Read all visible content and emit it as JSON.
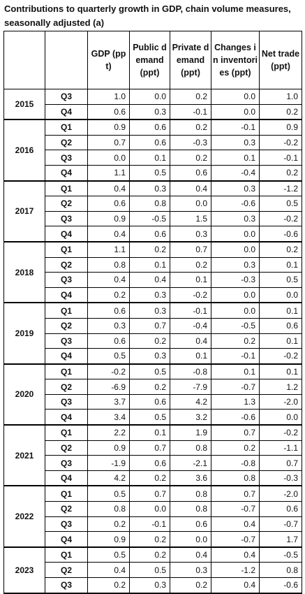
{
  "header": {
    "title": "Contributions to quarterly growth in GDP, chain volume measures, seasonally adjusted (a)"
  },
  "table": {
    "columns": [
      "GDP (ppt)",
      "Public demand (ppt)",
      "Private demand (ppt)",
      "Changes in inventories (ppt)",
      "Net trade (ppt)"
    ],
    "groups": [
      {
        "year": "2015",
        "rows": [
          {
            "quarter": "Q3",
            "values": [
              "1.0",
              "0.0",
              "0.2",
              "0.0",
              "1.0"
            ]
          },
          {
            "quarter": "Q4",
            "values": [
              "0.6",
              "0.3",
              "-0.1",
              "0.0",
              "0.2"
            ]
          }
        ]
      },
      {
        "year": "2016",
        "rows": [
          {
            "quarter": "Q1",
            "values": [
              "0.9",
              "0.6",
              "0.2",
              "-0.1",
              "0.9"
            ]
          },
          {
            "quarter": "Q2",
            "values": [
              "0.7",
              "0.6",
              "-0.3",
              "0.3",
              "-0.2"
            ]
          },
          {
            "quarter": "Q3",
            "values": [
              "0.0",
              "0.1",
              "0.2",
              "0.1",
              "-0.1"
            ]
          },
          {
            "quarter": "Q4",
            "values": [
              "1.1",
              "0.5",
              "0.6",
              "-0.4",
              "0.2"
            ]
          }
        ]
      },
      {
        "year": "2017",
        "rows": [
          {
            "quarter": "Q1",
            "values": [
              "0.4",
              "0.3",
              "0.4",
              "0.3",
              "-1.2"
            ]
          },
          {
            "quarter": "Q2",
            "values": [
              "0.6",
              "0.8",
              "0.0",
              "-0.6",
              "0.5"
            ]
          },
          {
            "quarter": "Q3",
            "values": [
              "0.9",
              "-0.5",
              "1.5",
              "0.3",
              "-0.2"
            ]
          },
          {
            "quarter": "Q4",
            "values": [
              "0.4",
              "0.6",
              "0.3",
              "0.0",
              "-0.6"
            ]
          }
        ]
      },
      {
        "year": "2018",
        "rows": [
          {
            "quarter": "Q1",
            "values": [
              "1.1",
              "0.2",
              "0.7",
              "0.0",
              "0.2"
            ]
          },
          {
            "quarter": "Q2",
            "values": [
              "0.8",
              "0.1",
              "0.2",
              "0.3",
              "0.1"
            ]
          },
          {
            "quarter": "Q3",
            "values": [
              "0.4",
              "0.4",
              "0.1",
              "-0.3",
              "0.5"
            ]
          },
          {
            "quarter": "Q4",
            "values": [
              "0.2",
              "0.3",
              "-0.2",
              "0.0",
              "0.0"
            ]
          }
        ]
      },
      {
        "year": "2019",
        "rows": [
          {
            "quarter": "Q1",
            "values": [
              "0.6",
              "0.3",
              "-0.1",
              "0.0",
              "0.1"
            ]
          },
          {
            "quarter": "Q2",
            "values": [
              "0.3",
              "0.7",
              "-0.4",
              "-0.5",
              "0.6"
            ]
          },
          {
            "quarter": "Q3",
            "values": [
              "0.6",
              "0.2",
              "0.4",
              "0.2",
              "0.1"
            ]
          },
          {
            "quarter": "Q4",
            "values": [
              "0.5",
              "0.3",
              "0.1",
              "-0.1",
              "-0.2"
            ]
          }
        ]
      },
      {
        "year": "2020",
        "rows": [
          {
            "quarter": "Q1",
            "values": [
              "-0.2",
              "0.5",
              "-0.8",
              "0.1",
              "0.1"
            ]
          },
          {
            "quarter": "Q2",
            "values": [
              "-6.9",
              "0.2",
              "-7.9",
              "-0.7",
              "1.2"
            ]
          },
          {
            "quarter": "Q3",
            "values": [
              "3.7",
              "0.6",
              "4.2",
              "1.3",
              "-2.0"
            ]
          },
          {
            "quarter": "Q4",
            "values": [
              "3.4",
              "0.5",
              "3.2",
              "-0.6",
              "0.0"
            ]
          }
        ]
      },
      {
        "year": "2021",
        "rows": [
          {
            "quarter": "Q1",
            "values": [
              "2.2",
              "0.1",
              "1.9",
              "0.7",
              "-0.2"
            ]
          },
          {
            "quarter": "Q2",
            "values": [
              "0.9",
              "0.7",
              "0.8",
              "0.2",
              "-1.1"
            ]
          },
          {
            "quarter": "Q3",
            "values": [
              "-1.9",
              "0.6",
              "-2.1",
              "-0.8",
              "0.7"
            ]
          },
          {
            "quarter": "Q4",
            "values": [
              "4.2",
              "0.2",
              "3.6",
              "0.8",
              "-0.3"
            ]
          }
        ]
      },
      {
        "year": "2022",
        "rows": [
          {
            "quarter": "Q1",
            "values": [
              "0.5",
              "0.7",
              "0.8",
              "0.7",
              "-2.0"
            ]
          },
          {
            "quarter": "Q2",
            "values": [
              "0.8",
              "0.0",
              "0.8",
              "-0.7",
              "0.6"
            ]
          },
          {
            "quarter": "Q3",
            "values": [
              "0.2",
              "-0.1",
              "0.6",
              "0.4",
              "-0.7"
            ]
          },
          {
            "quarter": "Q4",
            "values": [
              "0.9",
              "0.2",
              "0.0",
              "-0.7",
              "1.7"
            ]
          }
        ]
      },
      {
        "year": "2023",
        "rows": [
          {
            "quarter": "Q1",
            "values": [
              "0.5",
              "0.2",
              "0.4",
              "0.4",
              "-0.5"
            ]
          },
          {
            "quarter": "Q2",
            "values": [
              "0.4",
              "0.5",
              "0.3",
              "-1.2",
              "0.8"
            ]
          },
          {
            "quarter": "Q3",
            "values": [
              "0.2",
              "0.3",
              "0.2",
              "0.4",
              "-0.6"
            ]
          }
        ]
      }
    ]
  }
}
